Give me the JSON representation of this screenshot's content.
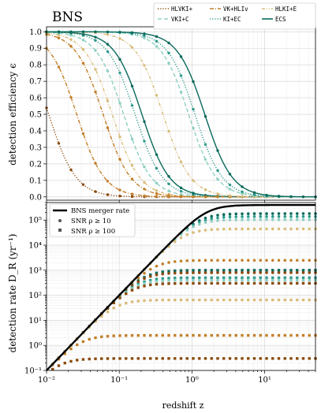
{
  "chart_data": [
    {
      "type": "line",
      "title": "BNS",
      "ylabel": "detection efficiency ϵ",
      "xscale": "log",
      "xlim": [
        0.01,
        50
      ],
      "ylim": [
        -0.02,
        1.03
      ],
      "yticks": [
        "0.0",
        "0.1",
        "0.2",
        "0.3",
        "0.4",
        "0.5",
        "0.6",
        "0.7",
        "0.8",
        "0.9",
        "1.0"
      ],
      "grid": true,
      "legend_position": "top-right",
      "series": [
        {
          "name": "HLVKI+",
          "color": "#8a4a0c",
          "dash": "dotted",
          "z50": 0.0107,
          "steep": 2.3
        },
        {
          "name": "VK+HLIv",
          "color": "#c27f2a",
          "dash": "dashdot",
          "z50": 0.026,
          "steep": 2.3
        },
        {
          "name": "HLKI+E",
          "color": "#d9bc7a",
          "dash": "dashdot2",
          "z50": 0.08,
          "steep": 2.3
        },
        {
          "name": "VKI+C",
          "color": "#8fd0c3",
          "dash": "dashed",
          "z50": 0.115,
          "steep": 2.3
        },
        {
          "name": "KI+EC",
          "color": "#2e9a8b",
          "dash": "dotted",
          "z50": 0.165,
          "steep": 2.3
        },
        {
          "name": "ECS",
          "color": "#0a6a5c",
          "dash": "solid",
          "z50": 0.205,
          "steep": 2.3
        },
        {
          "name": "",
          "color": "#c27f2a",
          "dash": "dashdot",
          "z50": 0.06,
          "steep": 2.3
        },
        {
          "name": "",
          "color": "#d9bc7a",
          "dash": "dashdot2",
          "z50": 0.4,
          "steep": 2.3
        },
        {
          "name": "",
          "color": "#8fd0c3",
          "dash": "dashed",
          "z50": 0.9,
          "steep": 2.3
        },
        {
          "name": "",
          "color": "#2e9a8b",
          "dash": "dotted",
          "z50": 1.1,
          "steep": 2.3
        },
        {
          "name": "",
          "color": "#0a6a5c",
          "dash": "solid",
          "z50": 1.5,
          "steep": 2.3
        }
      ]
    },
    {
      "type": "line",
      "xlabel": "redshift z",
      "ylabel": "detection rate D_R (yr⁻¹)",
      "xscale": "log",
      "yscale": "log",
      "xlim": [
        0.01,
        50
      ],
      "ylim": [
        0.1,
        500000
      ],
      "xticks": [
        "10⁻²",
        "10⁻¹",
        "10⁰",
        "10¹"
      ],
      "yticks": [
        "10⁻¹",
        "10⁰",
        "10¹",
        "10²",
        "10³",
        "10⁴",
        "10⁵"
      ],
      "grid": true,
      "legend_position": "top-left",
      "legend": [
        "BNS merger rate",
        "SNR ρ ≥ 10",
        "SNR ρ ≥ 100"
      ],
      "merger_rate": {
        "name": "BNS merger rate",
        "color": "#000000",
        "value_at_0.01": 0.1,
        "slope": 3,
        "plateau": 400000,
        "plateau_z": 1.8
      },
      "series": [
        {
          "name": "SNR ρ ≥ 10",
          "color": "#0a6a5c",
          "marker": "circle",
          "plateau": 330000
        },
        {
          "name": "SNR ρ ≥ 10",
          "color": "#2e9a8b",
          "marker": "circle",
          "plateau": 210000
        },
        {
          "name": "SNR ρ ≥ 10",
          "color": "#8fd0c3",
          "marker": "circle",
          "plateau": 140000
        },
        {
          "name": "SNR ρ ≥ 10",
          "color": "#d9bc7a",
          "marker": "circle",
          "plateau": 50000
        },
        {
          "name": "SNR ρ ≥ 10",
          "color": "#c27f2a",
          "marker": "circle",
          "plateau": 2500
        },
        {
          "name": "SNR ρ ≥ 10",
          "color": "#0a6a5c",
          "marker": "square",
          "plateau": 1000
        },
        {
          "name": "SNR ρ ≥ 10",
          "color": "#8a4a0c",
          "marker": "circle",
          "plateau": 800
        },
        {
          "name": "SNR ρ ≥ 10",
          "color": "#2e9a8b",
          "marker": "square",
          "plateau": 500
        },
        {
          "name": "SNR ρ ≥ 10",
          "color": "#8fd0c3",
          "marker": "square",
          "plateau": 400
        },
        {
          "name": "SNR ρ ≥ 100",
          "color": "#8a4a0c",
          "marker": "square",
          "plateau": 300
        },
        {
          "name": "SNR ρ ≥ 100",
          "color": "#d9bc7a",
          "marker": "square",
          "plateau": 65
        },
        {
          "name": "SNR ρ ≥ 100",
          "color": "#c27f2a",
          "marker": "square",
          "plateau": 2.5
        },
        {
          "name": "SNR ρ ≥ 100",
          "color": "#8a4a0c",
          "marker": "square",
          "plateau": 0.3
        }
      ]
    }
  ]
}
